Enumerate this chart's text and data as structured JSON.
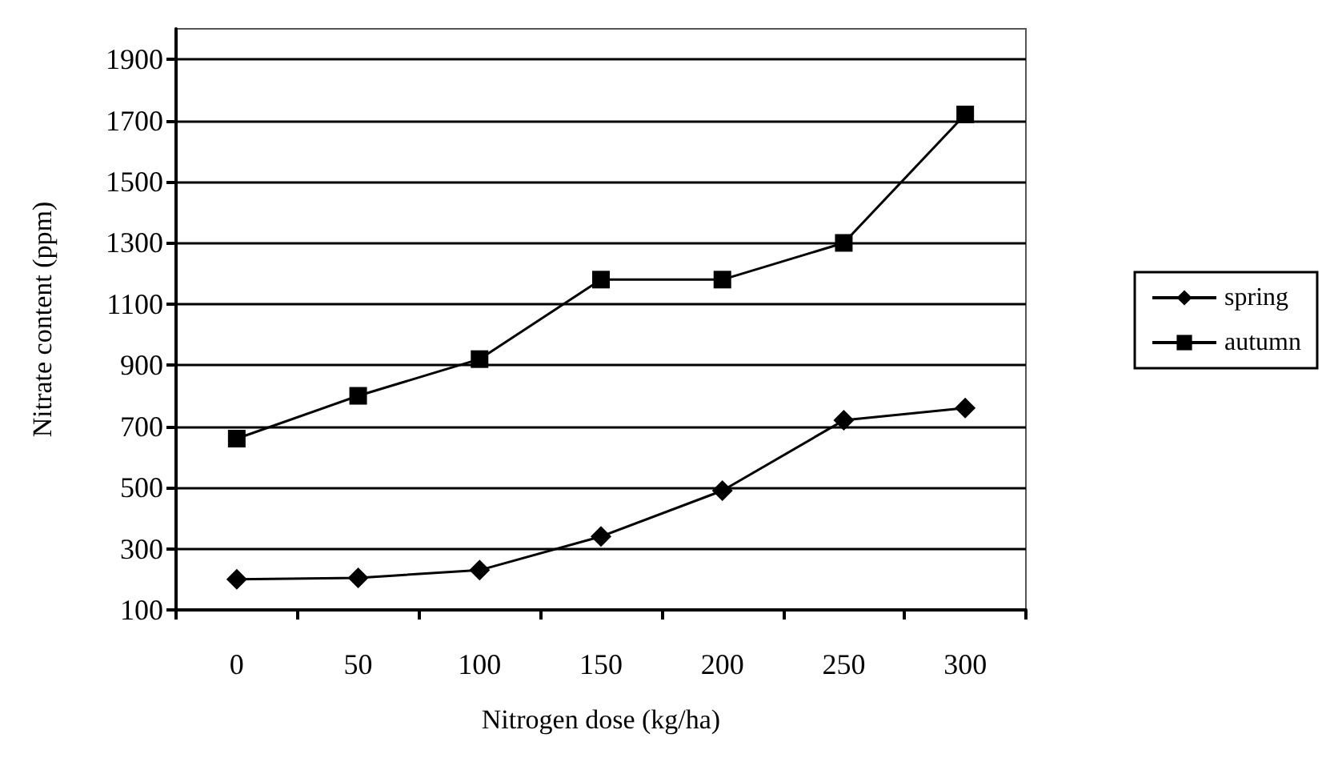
{
  "chart_data": {
    "type": "line",
    "xlabel": "Nitrogen dose (kg/ha)",
    "ylabel": "Nitrate content (ppm)",
    "categories": [
      "0",
      "50",
      "100",
      "150",
      "200",
      "250",
      "300"
    ],
    "series": [
      {
        "name": "spring",
        "color": "#000000",
        "marker": "diamond",
        "values": [
          200,
          205,
          230,
          340,
          490,
          720,
          760
        ]
      },
      {
        "name": "autumn",
        "color": "#000000",
        "marker": "square",
        "values": [
          660,
          800,
          920,
          1180,
          1180,
          1300,
          1720
        ]
      }
    ],
    "ylim": [
      100,
      2000
    ],
    "yticks": [
      100,
      300,
      500,
      700,
      900,
      1100,
      1300,
      1500,
      1700,
      1900
    ],
    "grid": "y",
    "legend": "right",
    "line_style": "solid"
  }
}
